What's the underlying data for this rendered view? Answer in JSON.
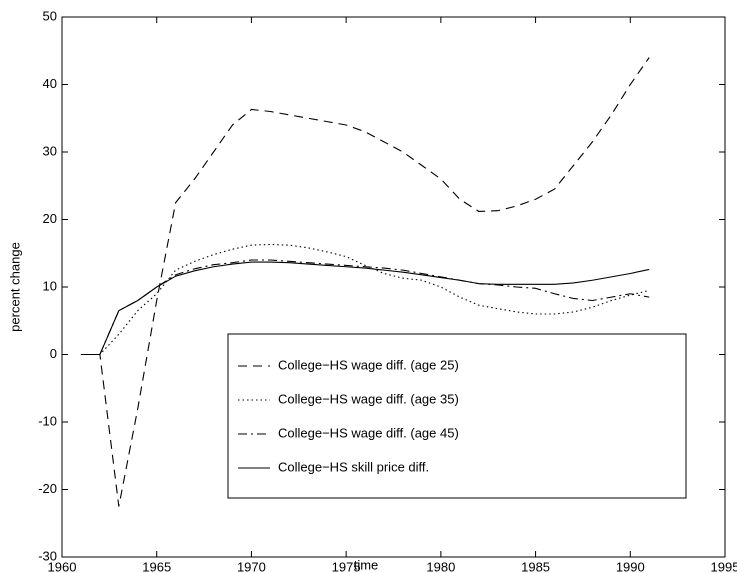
{
  "chart_data": {
    "type": "line",
    "xlabel": "time",
    "ylabel": "percent change",
    "x": [
      1961,
      1962,
      1963,
      1964,
      1965,
      1966,
      1967,
      1968,
      1969,
      1970,
      1971,
      1972,
      1973,
      1974,
      1975,
      1976,
      1977,
      1978,
      1979,
      1980,
      1981,
      1982,
      1983,
      1984,
      1985,
      1986,
      1987,
      1988,
      1989,
      1990,
      1991
    ],
    "series": [
      {
        "name": "College−HS wage diff. (age 25)",
        "color": "#000000",
        "style": "dashed",
        "values": [
          0,
          0,
          -22.5,
          -8,
          8,
          22.5,
          26,
          30,
          34,
          36.3,
          36,
          35.5,
          35,
          34.5,
          34,
          33,
          31.5,
          30,
          28,
          26,
          23,
          21.2,
          21.3,
          22,
          23,
          24.5,
          28,
          31.5,
          35.5,
          40,
          44
        ]
      },
      {
        "name": "College−HS wage diff. (age 35)",
        "color": "#000000",
        "style": "dotted",
        "values": [
          0,
          0,
          3,
          6.5,
          9,
          12.5,
          13.8,
          14.8,
          15.6,
          16.2,
          16.3,
          16.2,
          15.8,
          15.2,
          14.5,
          13.2,
          12,
          11.3,
          11,
          10,
          8.5,
          7.3,
          6.8,
          6.3,
          6,
          6,
          6.3,
          7,
          8,
          8.8,
          9.5
        ]
      },
      {
        "name": "College−HS wage diff. (age 45)",
        "color": "#000000",
        "style": "dashdot",
        "values": [
          0,
          0,
          6.5,
          8,
          10,
          11.8,
          12.7,
          13.3,
          13.6,
          14,
          14,
          13.8,
          13.6,
          13.4,
          13.2,
          13,
          12.8,
          12.5,
          12,
          11.5,
          11,
          10.5,
          10.3,
          10,
          9.8,
          9,
          8.3,
          8,
          8.5,
          9,
          8.5
        ]
      },
      {
        "name": "College−HS skill price diff.",
        "color": "#000000",
        "style": "solid",
        "values": [
          0,
          0,
          6.5,
          8,
          10,
          11.6,
          12.4,
          13,
          13.4,
          13.7,
          13.7,
          13.6,
          13.4,
          13.2,
          13,
          12.8,
          12.5,
          12.2,
          11.8,
          11.4,
          11,
          10.5,
          10.4,
          10.4,
          10.4,
          10.4,
          10.6,
          11,
          11.5,
          12,
          12.6
        ]
      }
    ],
    "xlim": [
      1960,
      1995
    ],
    "xticks": [
      1960,
      1965,
      1970,
      1975,
      1980,
      1985,
      1990,
      1995
    ],
    "ylim": [
      -30,
      50
    ],
    "yticks": [
      -30,
      -20,
      -10,
      0,
      10,
      20,
      30,
      40,
      50
    ],
    "grid": false,
    "legend": "lower right"
  }
}
